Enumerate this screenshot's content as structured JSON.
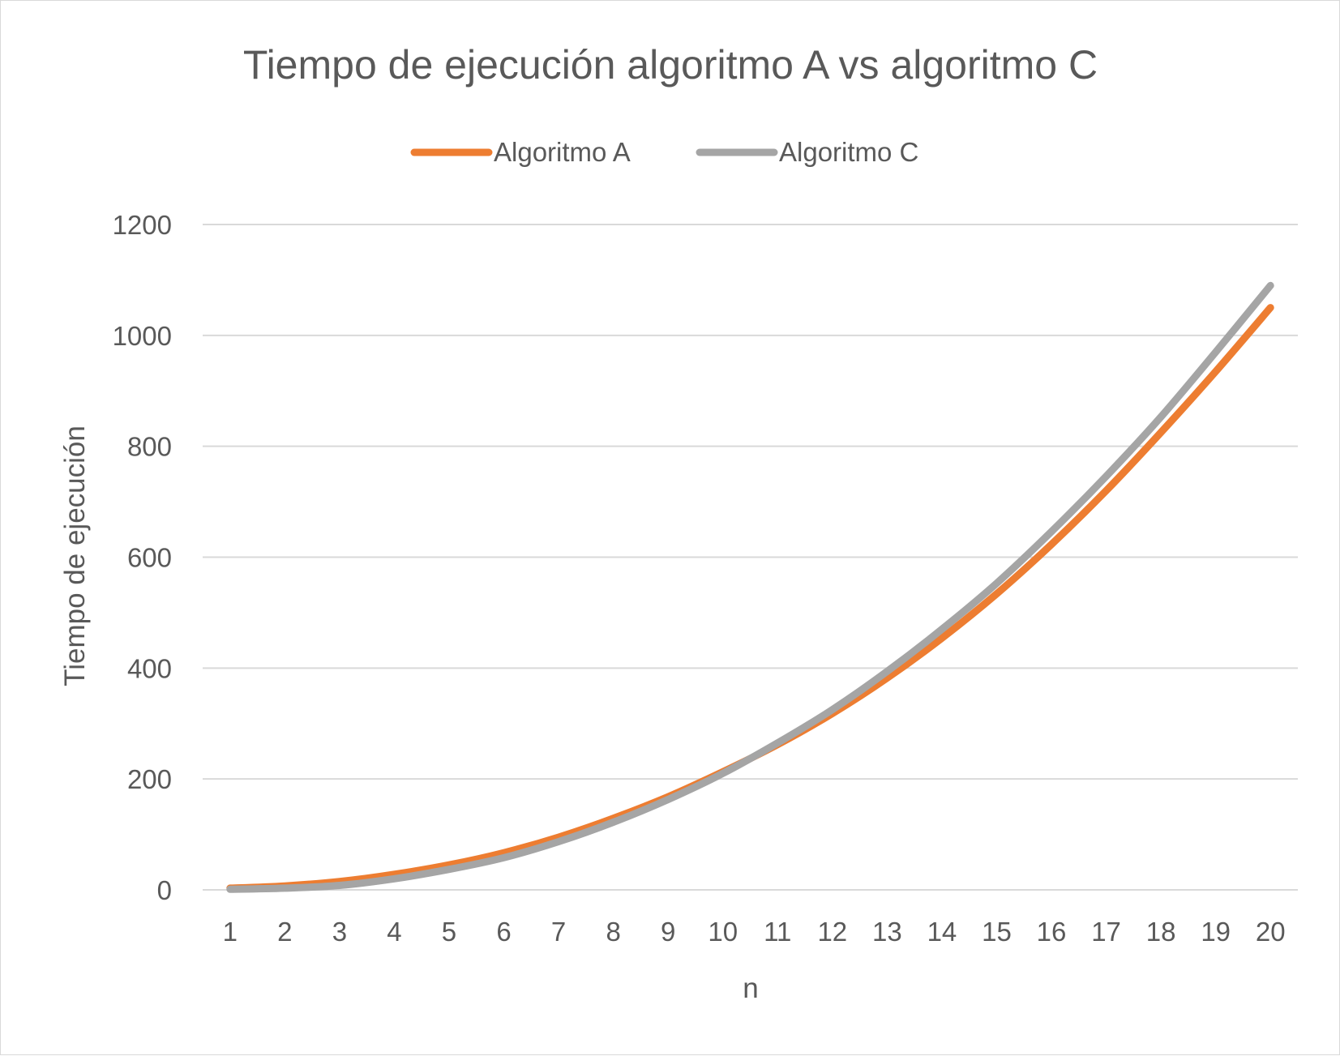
{
  "chart_data": {
    "type": "line",
    "title": "Tiempo de ejecución algoritmo A vs algoritmo C",
    "xlabel": "n",
    "ylabel": "Tiempo de ejecución",
    "x": [
      "1",
      "2",
      "3",
      "4",
      "5",
      "6",
      "7",
      "8",
      "9",
      "10",
      "11",
      "12",
      "13",
      "14",
      "15",
      "16",
      "17",
      "18",
      "19",
      "20"
    ],
    "yticks": [
      "0",
      "200",
      "400",
      "600",
      "800",
      "1000",
      "1200"
    ],
    "ylim": [
      0,
      1200
    ],
    "grid": true,
    "legend": "top",
    "series": [
      {
        "name": "Algoritmo A",
        "color": "#ED7D31",
        "values": [
          3,
          7,
          15,
          28,
          45,
          67,
          95,
          129,
          168,
          213,
          262,
          318,
          382,
          454,
          534,
          623,
          720,
          825,
          935,
          1050
        ]
      },
      {
        "name": "Algoritmo C",
        "color": "#A5A5A5",
        "values": [
          1,
          3,
          8,
          20,
          37,
          58,
          87,
          122,
          163,
          210,
          265,
          325,
          394,
          470,
          553,
          646,
          746,
          853,
          970,
          1090
        ]
      }
    ]
  }
}
